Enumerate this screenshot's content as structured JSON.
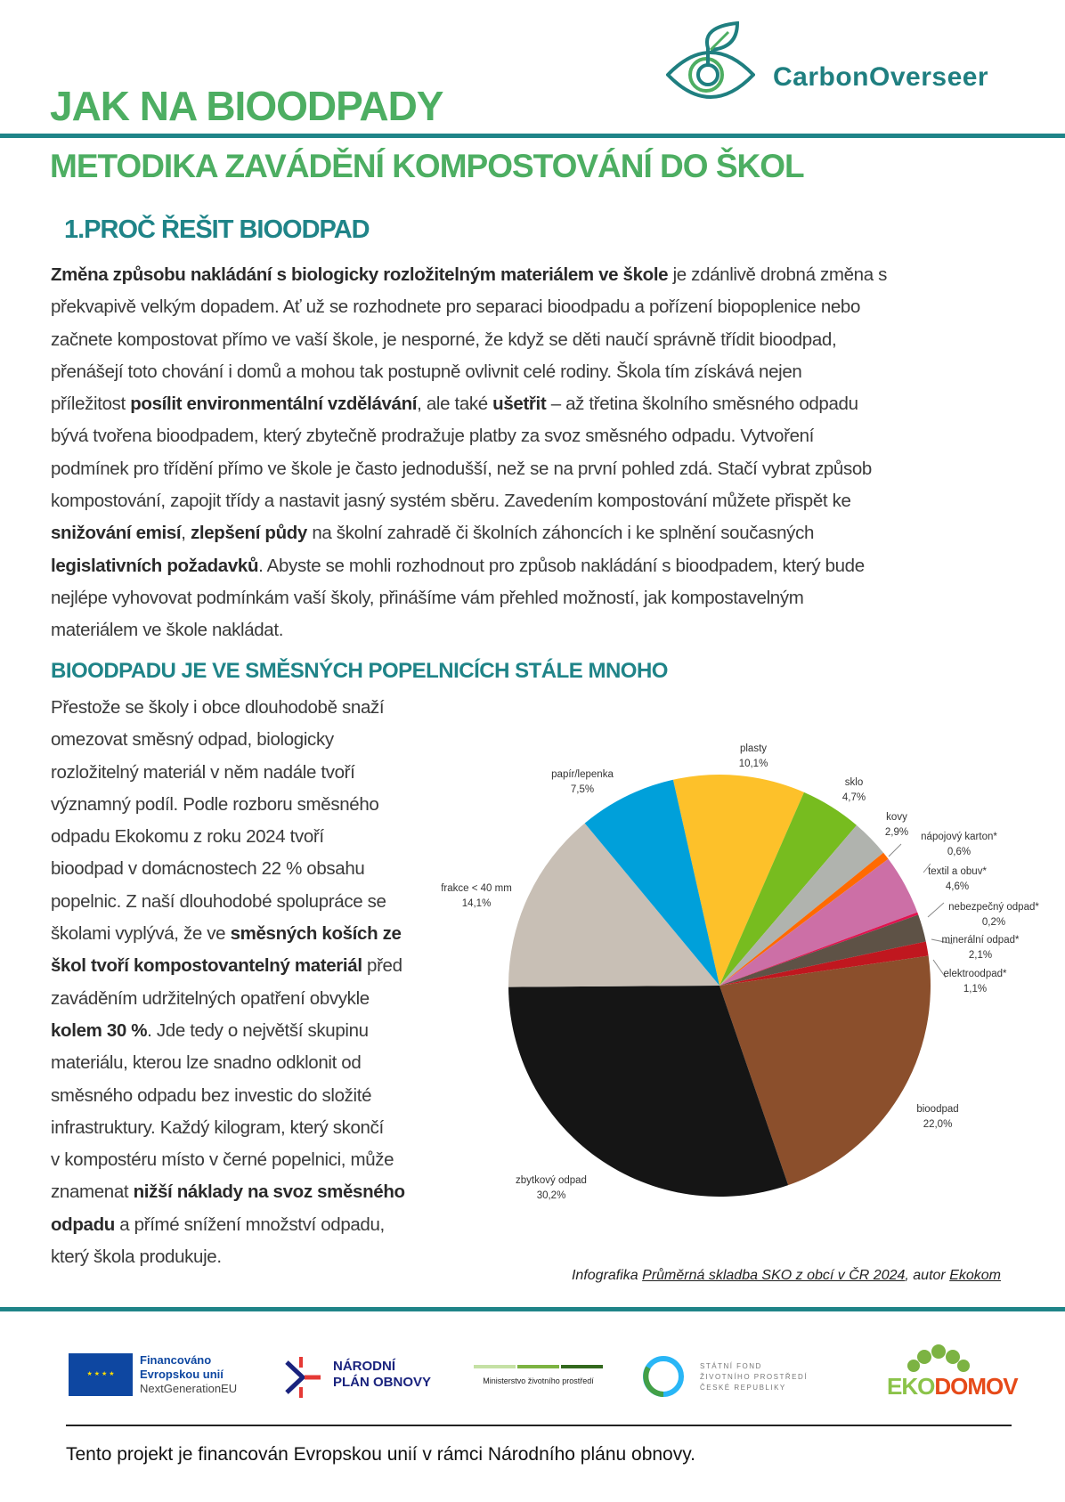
{
  "header": {
    "logo_text": "CarbonOverseer",
    "title": "JAK NA BIOODPADY",
    "subtitle": "METODIKA ZAVÁDĚNÍ KOMPOSTOVÁNÍ DO ŠKOL",
    "section_title": "1.PROČ ŘEŠIT BIOODPAD"
  },
  "intro_lines": [
    [
      {
        "t": "Změna způsobu nakládání s biologicky rozložitelným materiálem ve škole",
        "b": true
      },
      {
        "t": " je zdánlivě drobná změna s"
      }
    ],
    [
      {
        "t": "překvapivě velkým dopadem. Ať už se rozhodnete pro separaci bioodpadu a pořízení biopoplenice nebo"
      }
    ],
    [
      {
        "t": "začnete kompostovat přímo ve vaší škole, je nesporné, že když se děti naučí správně třídit bioodpad,"
      }
    ],
    [
      {
        "t": "přenášejí toto chování i domů a mohou tak postupně ovlivnit celé rodiny. Škola tím získává nejen"
      }
    ],
    [
      {
        "t": "příležitost "
      },
      {
        "t": "posílit environmentální vzdělávání",
        "b": true
      },
      {
        "t": ", ale také "
      },
      {
        "t": "ušetřit",
        "b": true
      },
      {
        "t": " – až třetina školního směsného odpadu"
      }
    ],
    [
      {
        "t": "bývá tvořena bioodpadem, který zbytečně prodražuje platby za svoz směsného odpadu. Vytvoření"
      }
    ],
    [
      {
        "t": "podmínek pro třídění přímo ve škole je často jednodušší, než se na první pohled zdá. Stačí vybrat způsob"
      }
    ],
    [
      {
        "t": "kompostování, zapojit třídy a nastavit jasný systém sběru. Zavedením kompostování můžete přispět ke"
      }
    ],
    [
      {
        "t": "snižování emisí",
        "b": true
      },
      {
        "t": ", "
      },
      {
        "t": "zlepšení půdy",
        "b": true
      },
      {
        "t": " na školní zahradě či školních záhoncích i ke splnění současných"
      }
    ],
    [
      {
        "t": "legislativních požadavků",
        "b": true
      },
      {
        "t": ". Abyste se mohli rozhodnout pro způsob nakládání s bioodpadem, který bude"
      }
    ],
    [
      {
        "t": "nejlépe vyhovovat podmínkám vaší školy, přinášíme vám přehled možností, jak kompostavelným"
      }
    ],
    [
      {
        "t": "materiálem ve škole nakládat."
      }
    ]
  ],
  "section2_title": "BIOODPADU JE VE SMĚSNÝCH POPELNICÍCH STÁLE MNOHO",
  "section2_lines": [
    [
      {
        "t": "Přestože se školy i obce dlouhodobě snaží"
      }
    ],
    [
      {
        "t": "omezovat směsný odpad, biologicky"
      }
    ],
    [
      {
        "t": "rozložitelný materiál v něm nadále tvoří"
      }
    ],
    [
      {
        "t": "významný podíl. Podle rozboru směsného"
      }
    ],
    [
      {
        "t": "odpadu Ekokomu z roku 2024 tvoří"
      }
    ],
    [
      {
        "t": "bioodpad v domácnostech 22 % obsahu"
      }
    ],
    [
      {
        "t": "popelnic. Z naší dlouhodobé spolupráce se"
      }
    ],
    [
      {
        "t": "školami vyplývá, že ve "
      },
      {
        "t": "směsných koších ze",
        "b": true
      }
    ],
    [
      {
        "t": "škol tvoří kompostovantelný materiál",
        "b": true
      },
      {
        "t": " před"
      }
    ],
    [
      {
        "t": "zaváděním udržitelných opatření obvykle"
      }
    ],
    [
      {
        "t": "kolem 30 %",
        "b": true
      },
      {
        "t": ". Jde tedy o největší skupinu"
      }
    ],
    [
      {
        "t": "materiálu, kterou lze snadno odklonit od"
      }
    ],
    [
      {
        "t": "směsného odpadu bez investic do složité"
      }
    ],
    [
      {
        "t": "infrastruktury. Každý kilogram, který skončí"
      }
    ],
    [
      {
        "t": "v kompostéru místo v černé popelnici, může"
      }
    ],
    [
      {
        "t": "znamenat "
      },
      {
        "t": "nižší náklady na svoz směsného",
        "b": true
      }
    ],
    [
      {
        "t": "odpadu",
        "b": true
      },
      {
        "t": " a přímé snížení množství odpadu,"
      }
    ],
    [
      {
        "t": "který škola produkuje."
      }
    ]
  ],
  "chart_data": {
    "type": "pie",
    "title": "",
    "unit": "%",
    "slices": [
      {
        "label": "plasty",
        "value": 10.1,
        "value_label": "10,1%",
        "color": "#fdc12a"
      },
      {
        "label": "sklo",
        "value": 4.7,
        "value_label": "4,7%",
        "color": "#77bc1f"
      },
      {
        "label": "kovy",
        "value": 2.9,
        "value_label": "2,9%",
        "color": "#b0b3ae"
      },
      {
        "label": "nápojový karton*",
        "value": 0.6,
        "value_label": "0,6%",
        "color": "#ff6a00"
      },
      {
        "label": "textil a obuv*",
        "value": 4.6,
        "value_label": "4,6%",
        "color": "#cc6fa6"
      },
      {
        "label": "nebezpečný odpad*",
        "value": 0.2,
        "value_label": "0,2%",
        "color": "#e0134f"
      },
      {
        "label": "minerální odpad*",
        "value": 2.1,
        "value_label": "2,1%",
        "color": "#5e5246"
      },
      {
        "label": "elektroodpad*",
        "value": 1.1,
        "value_label": "1,1%",
        "color": "#c0171f"
      },
      {
        "label": "bioodpad",
        "value": 22.0,
        "value_label": "22,0%",
        "color": "#8b4f2c"
      },
      {
        "label": "zbytkový odpad",
        "value": 30.2,
        "value_label": "30,2%",
        "color": "#151515"
      },
      {
        "label": "frakce < 40 mm",
        "value": 14.1,
        "value_label": "14,1%",
        "color": "#c8bfb5"
      },
      {
        "label": "papír/lepenka",
        "value": 7.5,
        "value_label": "7,5%",
        "color": "#00a0da"
      }
    ]
  },
  "caption": {
    "prefix": "Infografika ",
    "link1": "Průměrná skladba SKO z obcí v ČR 2024",
    "middle": ", autor ",
    "link2": "Ekokom"
  },
  "footer": {
    "eu_line1": "Financováno",
    "eu_line2": "Evropskou unií",
    "eu_line3": "NextGenerationEU",
    "npo_line1": "NÁRODNÍ",
    "npo_line2": "PLÁN OBNOVY",
    "mzp": "Ministerstvo životního prostředí",
    "sfzp_line1": "STÁTNÍ FOND",
    "sfzp_line2": "ŽIVOTNÍHO PROSTŘEDÍ",
    "sfzp_line3": "ČESKÉ REPUBLIKY",
    "ekodomov_a": "EKO",
    "ekodomov_b": "DOMOV",
    "note": "Tento projekt je financován Evropskou unií v rámci Národního plánu obnovy."
  },
  "colors": {
    "green": "#4dae62",
    "teal": "#1f8488"
  }
}
